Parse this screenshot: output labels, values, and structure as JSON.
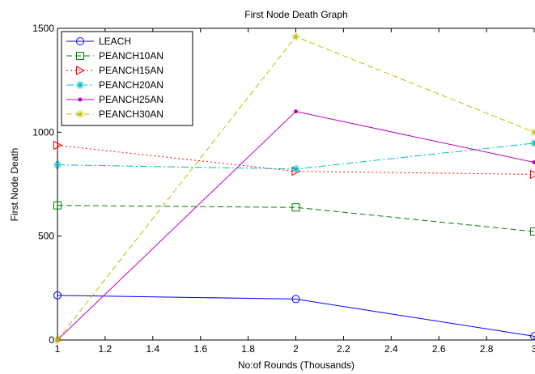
{
  "chart_data": {
    "type": "line",
    "title": "First Node Death Graph",
    "xlabel": "No:of Rounds (Thousands)",
    "ylabel": "First Node Death",
    "xlim": [
      1,
      3
    ],
    "ylim": [
      0,
      1500
    ],
    "x_ticks": [
      "1",
      "1.2",
      "1.4",
      "1.6",
      "1.8",
      "2",
      "2.2",
      "2.4",
      "2.6",
      "2.8",
      "3"
    ],
    "y_ticks": [
      "0",
      "500",
      "1000",
      "1500"
    ],
    "x": [
      1,
      2,
      3
    ],
    "legend_position": "top-left",
    "series": [
      {
        "name": "LEACH",
        "values": [
          215,
          197,
          18
        ],
        "color": "#0000ff",
        "dash": "solid",
        "marker": "circle"
      },
      {
        "name": "PEANCH10AN",
        "values": [
          648,
          638,
          522
        ],
        "color": "#008000",
        "dash": "dashed",
        "marker": "square"
      },
      {
        "name": "PEANCH15AN",
        "values": [
          937,
          812,
          797
        ],
        "color": "#ff0000",
        "dash": "dotted",
        "marker": "triangle-right"
      },
      {
        "name": "PEANCH20AN",
        "values": [
          843,
          823,
          947
        ],
        "color": "#00bfbf",
        "dash": "dashdot",
        "marker": "star"
      },
      {
        "name": "PEANCH25AN",
        "values": [
          0,
          1100,
          855
        ],
        "color": "#bf00bf",
        "dash": "solid",
        "marker": "dot"
      },
      {
        "name": "PEANCH30AN",
        "values": [
          0,
          1460,
          1000
        ],
        "color": "#bfbf00",
        "dash": "dashed",
        "marker": "asterisk"
      }
    ]
  }
}
